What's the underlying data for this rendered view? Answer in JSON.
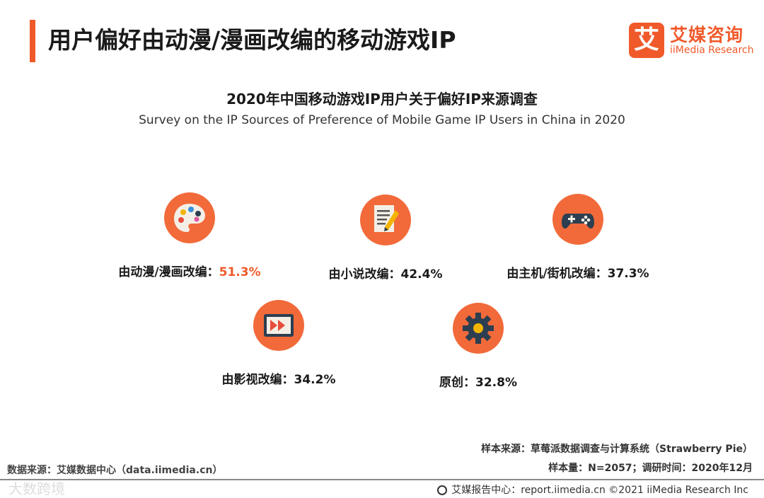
{
  "page_title": "用户偏好由动漫/漫画改编的移动游戏IP",
  "logo": {
    "cn": "艾媒咨询",
    "en": "iiMedia Research",
    "mark": "艾"
  },
  "chart_data": {
    "type": "icon-statistics",
    "title": "2020年中国移动游戏IP用户关于偏好IP来源调查",
    "subtitle": "Survey on the IP Sources of Preference of Mobile Game IP Users in China in 2020",
    "unit": "%",
    "items": [
      {
        "label": "由动漫/漫画改编：",
        "value": 51.3,
        "display": "51.3%",
        "icon": "palette-icon",
        "highlight": true
      },
      {
        "label": "由小说改编：",
        "value": 42.4,
        "display": "42.4%",
        "icon": "document-pencil-icon",
        "highlight": false
      },
      {
        "label": "由主机/街机改编：",
        "value": 37.3,
        "display": "37.3%",
        "icon": "gamepad-icon",
        "highlight": false
      },
      {
        "label": "由影视改编：",
        "value": 34.2,
        "display": "34.2%",
        "icon": "video-play-icon",
        "highlight": false
      },
      {
        "label": "原创：",
        "value": 32.8,
        "display": "32.8%",
        "icon": "gear-icon",
        "highlight": false
      }
    ]
  },
  "colors": {
    "accent": "#f05a2b",
    "circle": "#f26a3a"
  },
  "footer": {
    "sample_source": "样本来源：草莓派数据调查与计算系统（Strawberry Pie）",
    "sample_size": "样本量：N=2057；调研时间：2020年12月",
    "data_source": "数据来源：艾媒数据中心（data.iimedia.cn）",
    "report": "艾媒报告中心：report.iimedia.cn ©2021  iiMedia Research  Inc",
    "watermark": "大数跨境"
  }
}
